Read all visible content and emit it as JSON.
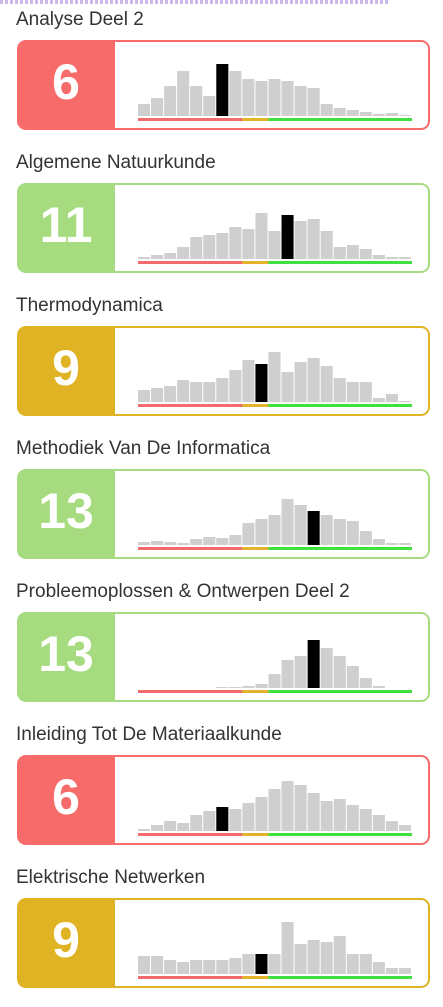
{
  "courses": [
    {
      "name": "Analyse Deel 2",
      "grade": 6,
      "color": "#f76b6b",
      "distribution": [
        12,
        18,
        30,
        45,
        30,
        20,
        52,
        45,
        37,
        35,
        37,
        35,
        30,
        28,
        12,
        8,
        6,
        4,
        2,
        3,
        1
      ]
    },
    {
      "name": "Algemene Natuurkunde",
      "grade": 11,
      "color": "#a6dc7f",
      "distribution": [
        2,
        4,
        6,
        12,
        22,
        24,
        26,
        32,
        30,
        46,
        28,
        44,
        38,
        40,
        28,
        12,
        14,
        10,
        4,
        2,
        2
      ]
    },
    {
      "name": "Thermodynamica",
      "grade": 9,
      "color": "#e0b325",
      "distribution": [
        12,
        14,
        16,
        22,
        20,
        20,
        24,
        32,
        42,
        38,
        50,
        30,
        40,
        44,
        36,
        24,
        20,
        20,
        4,
        8,
        1
      ]
    },
    {
      "name": "Methodiek Van De Informatica",
      "grade": 13,
      "color": "#a6dc7f",
      "distribution": [
        3,
        4,
        3,
        2,
        6,
        8,
        7,
        10,
        22,
        26,
        30,
        46,
        40,
        34,
        30,
        26,
        24,
        14,
        6,
        2,
        2
      ]
    },
    {
      "name": "Probleemoplossen & Ontwerpen Deel 2",
      "grade": 13,
      "color": "#a6dc7f",
      "distribution": [
        0,
        0,
        0,
        0,
        0,
        0,
        1,
        1,
        2,
        4,
        14,
        28,
        32,
        48,
        40,
        32,
        22,
        10,
        2,
        0,
        0
      ]
    },
    {
      "name": "Inleiding Tot De Materiaalkunde",
      "grade": 6,
      "color": "#f76b6b",
      "distribution": [
        2,
        6,
        10,
        8,
        16,
        20,
        24,
        22,
        28,
        34,
        42,
        50,
        46,
        38,
        30,
        32,
        26,
        22,
        16,
        10,
        6
      ]
    },
    {
      "name": "Elektrische Netwerken",
      "grade": 9,
      "color": "#e0b325",
      "distribution": [
        18,
        18,
        14,
        12,
        14,
        14,
        14,
        16,
        20,
        20,
        20,
        52,
        30,
        34,
        32,
        38,
        20,
        20,
        12,
        6,
        6
      ]
    }
  ],
  "ylim": [
    0,
    60
  ],
  "bands": [
    {
      "from": 0,
      "to": 8,
      "color": "#f26b6b"
    },
    {
      "from": 8,
      "to": 10,
      "color": "#e3b32a"
    },
    {
      "from": 10,
      "to": 21,
      "color": "#3fe03f"
    }
  ]
}
